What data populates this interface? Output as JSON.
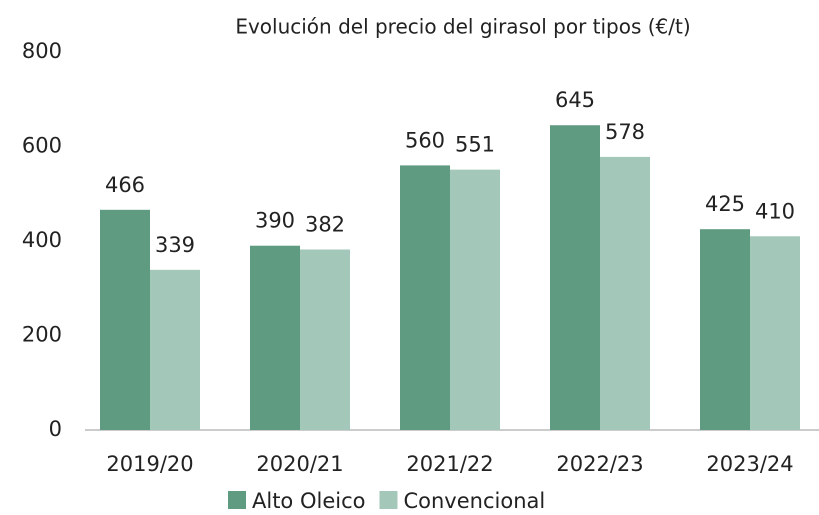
{
  "chart_data": {
    "type": "bar",
    "title": "Evolución del precio del girasol por tipos (€/t)",
    "categories": [
      "2019/20",
      "2020/21",
      "2021/22",
      "2022/23",
      "2023/24"
    ],
    "series": [
      {
        "name": "Alto Oleico",
        "color": "#5f9b80",
        "values": [
          466,
          390,
          560,
          645,
          425
        ]
      },
      {
        "name": "Convencional",
        "color": "#a3c7b8",
        "values": [
          339,
          382,
          551,
          578,
          410
        ]
      }
    ],
    "ylim": [
      0,
      800
    ],
    "yticks": [
      0,
      200,
      400,
      600,
      800
    ],
    "grid": false,
    "legend": "bottom"
  }
}
